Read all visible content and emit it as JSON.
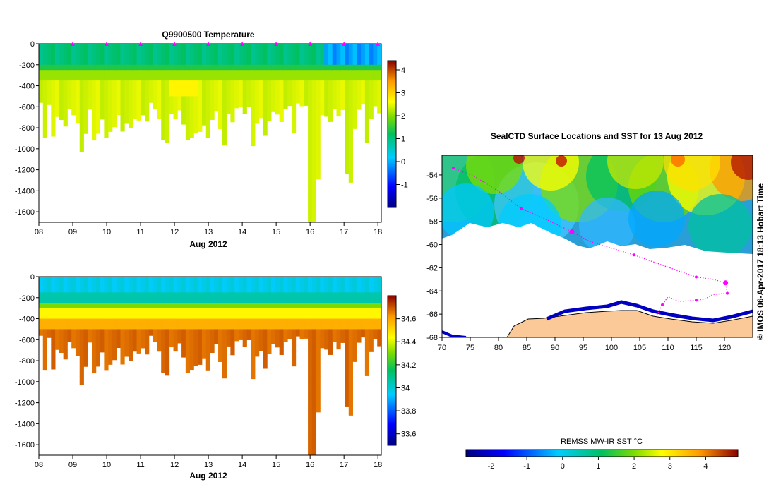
{
  "chart_data": [
    {
      "type": "heatmap",
      "title": "Q9900500  Temperature",
      "xlabel": "Aug 2012",
      "x_ticks": [
        "08",
        "09",
        "10",
        "11",
        "12",
        "13",
        "14",
        "15",
        "16",
        "17",
        "18"
      ],
      "xlim": [
        8,
        18.1
      ],
      "ylim": [
        -1700,
        0
      ],
      "y_ticks": [
        0,
        -200,
        -400,
        -600,
        -800,
        -1000,
        -1200,
        -1400,
        -1600
      ],
      "y_tick_labels": [
        "0",
        "-200",
        "-400",
        "-600",
        "-800",
        "-1000",
        "-1200",
        "-1400",
        "-1600"
      ],
      "colorbar": {
        "min": -2,
        "max": 4.4,
        "ticks": [
          -1,
          0,
          1,
          2,
          3,
          4
        ],
        "tick_labels": [
          "-1",
          "0",
          "1",
          "2",
          "3",
          "4"
        ]
      },
      "profile_day_ticks": [
        9,
        10,
        11,
        12,
        13,
        14,
        15,
        16,
        17,
        18
      ]
    },
    {
      "type": "heatmap",
      "title": "",
      "xlabel": "Aug 2012",
      "x_ticks": [
        "08",
        "09",
        "10",
        "11",
        "12",
        "13",
        "14",
        "15",
        "16",
        "17",
        "18"
      ],
      "xlim": [
        8,
        18.1
      ],
      "ylim": [
        -1700,
        0
      ],
      "y_ticks": [
        0,
        -200,
        -400,
        -600,
        -800,
        -1000,
        -1200,
        -1400,
        -1600
      ],
      "y_tick_labels": [
        "0",
        "-200",
        "-400",
        "-600",
        "-800",
        "-1000",
        "-1200",
        "-1400",
        "-1600"
      ],
      "colorbar": {
        "min": 33.5,
        "max": 34.8,
        "ticks": [
          33.6,
          33.8,
          34,
          34.2,
          34.4,
          34.6
        ],
        "tick_labels": [
          "33.6",
          "33.8",
          "34",
          "34.2",
          "34.4",
          "34.6"
        ]
      }
    },
    {
      "type": "map",
      "title": "SealCTD Surface Locations and SST for 13 Aug 2012",
      "xlim": [
        70,
        125
      ],
      "ylim": [
        -68,
        -52.3
      ],
      "x_ticks": [
        70,
        75,
        80,
        85,
        90,
        95,
        100,
        105,
        110,
        115,
        120
      ],
      "x_tick_labels": [
        "70",
        "75",
        "80",
        "85",
        "90",
        "95",
        "100",
        "105",
        "110",
        "115",
        "120"
      ],
      "y_ticks": [
        -54,
        -56,
        -58,
        -60,
        -62,
        -64,
        -66,
        -68
      ],
      "y_tick_labels": [
        "-54",
        "-56",
        "-58",
        "-60",
        "-62",
        "-64",
        "-66",
        "-68"
      ],
      "track_points": [
        [
          72,
          -53.4
        ],
        [
          76,
          -54.2
        ],
        [
          80,
          -55.4
        ],
        [
          84,
          -56.9
        ],
        [
          87,
          -57.5
        ],
        [
          90,
          -58.2
        ],
        [
          93,
          -58.9
        ],
        [
          96,
          -59.7
        ],
        [
          100,
          -60.3
        ],
        [
          104,
          -60.9
        ],
        [
          108,
          -61.6
        ],
        [
          112,
          -62.3
        ],
        [
          115,
          -62.8
        ],
        [
          118,
          -63.0
        ],
        [
          120.2,
          -63.3
        ],
        [
          120.5,
          -64.2
        ],
        [
          118.0,
          -64.3
        ],
        [
          116.5,
          -64.7
        ],
        [
          115,
          -64.8
        ],
        [
          112,
          -64.9
        ],
        [
          110,
          -64.5
        ],
        [
          109,
          -65.2
        ],
        [
          108,
          -66.1
        ]
      ],
      "sst_colorbar": {
        "label": "REMSS MW-IR SST °C",
        "min": -2.7,
        "max": 4.9,
        "ticks": [
          -2,
          -1,
          0,
          1,
          2,
          3,
          4
        ],
        "tick_labels": [
          "-2",
          "-1",
          "0",
          "1",
          "2",
          "3",
          "4"
        ]
      },
      "credit": "© IMOS 06-Apr-2017 18:13 Hobart Time"
    }
  ]
}
